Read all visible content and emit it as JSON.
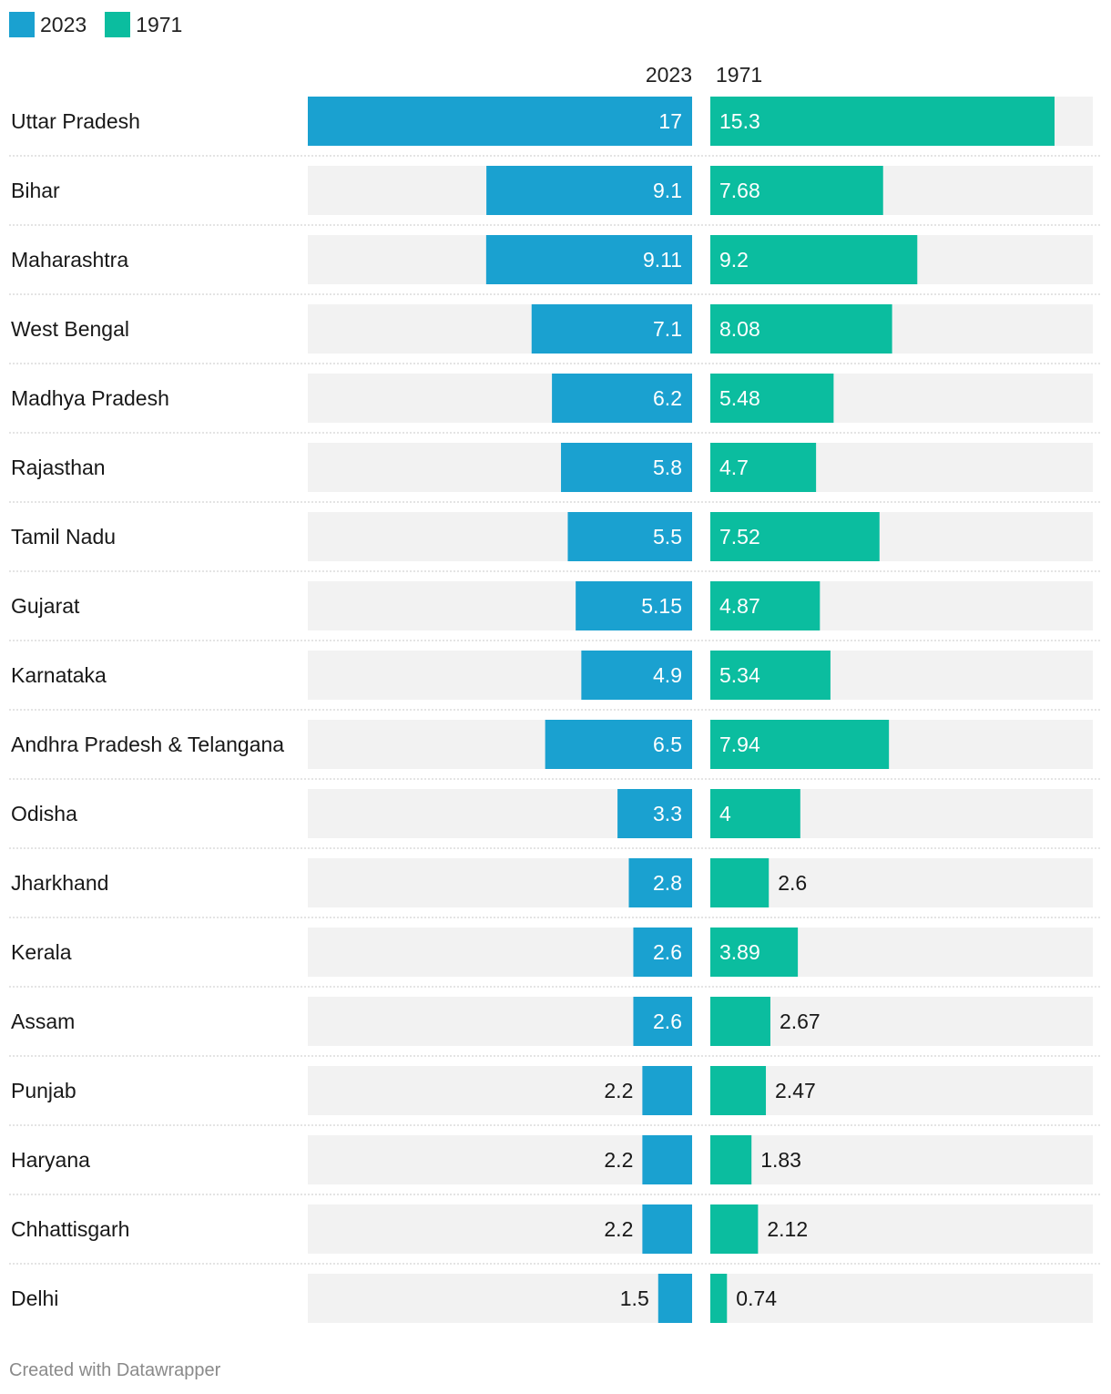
{
  "legend": [
    {
      "label": "2023",
      "color": "#1aa1d0"
    },
    {
      "label": "1971",
      "color": "#0bbd9f"
    }
  ],
  "headers": {
    "left": "2023",
    "right": "1971"
  },
  "footer": "Created with Datawrapper",
  "colors": {
    "series_2023": "#1aa1d0",
    "series_1971": "#0bbd9f",
    "track": "#f2f2f2",
    "separator": "#c8c8c8"
  },
  "chart_data": {
    "type": "bar",
    "orientation": "horizontal-split",
    "categories": [
      "Uttar Pradesh",
      "Bihar",
      "Maharashtra",
      "West Bengal",
      "Madhya Pradesh",
      "Rajasthan",
      "Tamil Nadu",
      "Gujarat",
      "Karnataka",
      "Andhra Pradesh & Telangana",
      "Odisha",
      "Jharkhand",
      "Kerala",
      "Assam",
      "Punjab",
      "Haryana",
      "Chhattisgarh",
      "Delhi"
    ],
    "series": [
      {
        "name": "2023",
        "color": "#1aa1d0",
        "values": [
          17,
          9.1,
          9.11,
          7.1,
          6.2,
          5.8,
          5.5,
          5.15,
          4.9,
          6.5,
          3.3,
          2.8,
          2.6,
          2.6,
          2.2,
          2.2,
          2.2,
          1.5
        ],
        "labels": [
          "17",
          "9.1",
          "9.11",
          "7.1",
          "6.2",
          "5.8",
          "5.5",
          "5.15",
          "4.9",
          "6.5",
          "3.3",
          "2.8",
          "2.6",
          "2.6",
          "2.2",
          "2.2",
          "2.2",
          "1.5"
        ]
      },
      {
        "name": "1971",
        "color": "#0bbd9f",
        "values": [
          15.3,
          7.68,
          9.2,
          8.08,
          5.48,
          4.7,
          7.52,
          4.87,
          5.34,
          7.94,
          4,
          2.6,
          3.89,
          2.67,
          2.47,
          1.83,
          2.12,
          0.74
        ],
        "labels": [
          "15.3",
          "7.68",
          "9.2",
          "8.08",
          "5.48",
          "4.7",
          "7.52",
          "4.87",
          "5.34",
          "7.94",
          "4",
          "2.6",
          "3.89",
          "2.67",
          "2.47",
          "1.83",
          "2.12",
          "0.74"
        ]
      }
    ],
    "xlim": [
      0,
      17
    ],
    "legend": "top-left",
    "grid": false
  }
}
